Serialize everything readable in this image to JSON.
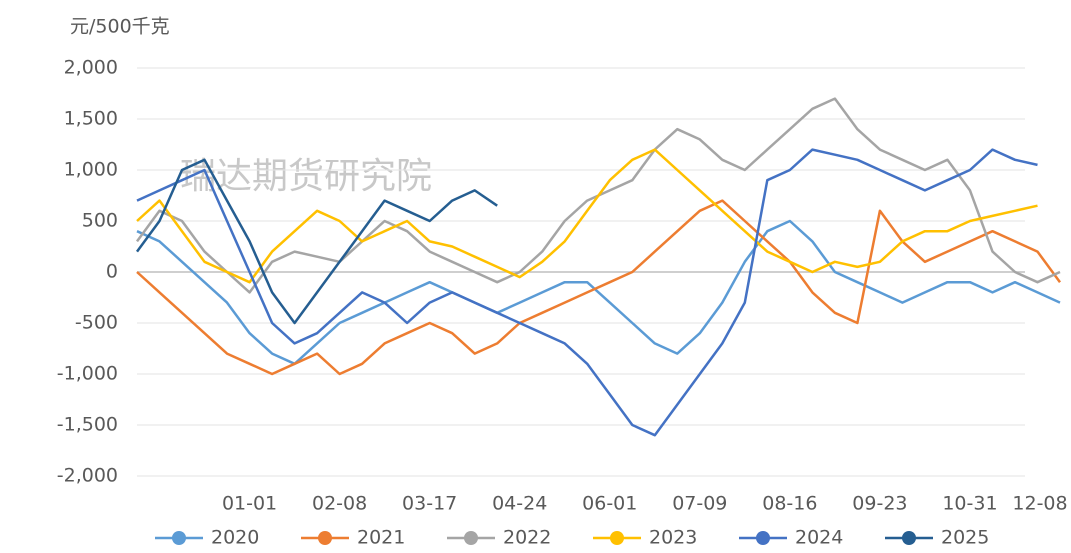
{
  "chart_data": {
    "type": "line",
    "y_axis_label": "元/500千克",
    "watermark": "瑞达期货研究院",
    "categories": [
      null,
      null,
      null,
      null,
      null,
      "01-01",
      null,
      null,
      null,
      "02-08",
      null,
      null,
      null,
      "03-17",
      null,
      null,
      null,
      "04-24",
      null,
      null,
      null,
      "06-01",
      null,
      null,
      null,
      "07-09",
      null,
      null,
      null,
      "08-16",
      null,
      null,
      null,
      "09-23",
      null,
      null,
      null,
      "10-31",
      null,
      null,
      null,
      "12-08"
    ],
    "ylim": [
      -2000,
      2000
    ],
    "yticks": [
      {
        "value": -2000,
        "label": "-2,000"
      },
      {
        "value": -1500,
        "label": "-1,500"
      },
      {
        "value": -1000,
        "label": "-1,000"
      },
      -500,
      0,
      500,
      {
        "value": 1000,
        "label": "1,000"
      },
      {
        "value": 1500,
        "label": "1,500"
      },
      {
        "value": 2000,
        "label": "2,000"
      }
    ],
    "grid": true,
    "legend": "bottom",
    "series": [
      {
        "name": "2020",
        "color": "#5b9bd5",
        "values": [
          400,
          300,
          100,
          -100,
          -300,
          -600,
          -800,
          -900,
          -700,
          -500,
          -400,
          -300,
          -200,
          -100,
          -200,
          -300,
          -400,
          -300,
          -200,
          -100,
          -100,
          -300,
          -500,
          -700,
          -800,
          -600,
          -300,
          100,
          400,
          500,
          300,
          0,
          -100,
          -200,
          -300,
          -200,
          -100,
          -100,
          -200,
          -100,
          -200,
          -300
        ]
      },
      {
        "name": "2021",
        "color": "#ed7d31",
        "values": [
          0,
          -200,
          -400,
          -600,
          -800,
          -900,
          -1000,
          -900,
          -800,
          -1000,
          -900,
          -700,
          -600,
          -500,
          -600,
          -800,
          -700,
          -500,
          -400,
          -300,
          -200,
          -100,
          0,
          200,
          400,
          600,
          700,
          500,
          300,
          100,
          -200,
          -400,
          -500,
          600,
          300,
          100,
          200,
          300,
          400,
          300,
          200,
          -100
        ]
      },
      {
        "name": "2022",
        "color": "#a5a5a5",
        "values": [
          300,
          600,
          500,
          200,
          0,
          -200,
          100,
          200,
          150,
          100,
          300,
          500,
          400,
          200,
          100,
          0,
          -100,
          0,
          200,
          500,
          700,
          800,
          900,
          1200,
          1400,
          1300,
          1100,
          1000,
          1200,
          1400,
          1600,
          1700,
          1400,
          1200,
          1100,
          1000,
          1100,
          800,
          200,
          0,
          -100,
          0
        ]
      },
      {
        "name": "2023",
        "color": "#ffc000",
        "values": [
          500,
          700,
          400,
          100,
          0,
          -100,
          200,
          400,
          600,
          500,
          300,
          400,
          500,
          300,
          250,
          150,
          50,
          -50,
          100,
          300,
          600,
          900,
          1100,
          1200,
          1000,
          800,
          600,
          400,
          200,
          100,
          0,
          100,
          50,
          100,
          300,
          400,
          400,
          500,
          550,
          600,
          650,
          null
        ]
      },
      {
        "name": "2024",
        "color": "#4472c4",
        "values": [
          700,
          800,
          900,
          1000,
          500,
          0,
          -500,
          -700,
          -600,
          -400,
          -200,
          -300,
          -500,
          -300,
          -200,
          -300,
          -400,
          -500,
          -600,
          -700,
          -900,
          -1200,
          -1500,
          -1600,
          -1300,
          -1000,
          -700,
          -300,
          900,
          1000,
          1200,
          1150,
          1100,
          1000,
          900,
          800,
          900,
          1000,
          1200,
          1100,
          1050,
          null
        ]
      },
      {
        "name": "2025",
        "color": "#255e91",
        "values": [
          200,
          500,
          1000,
          1100,
          700,
          300,
          -200,
          -500,
          -200,
          100,
          400,
          700,
          600,
          500,
          700,
          800,
          650,
          null,
          null,
          null,
          null,
          null,
          null,
          null,
          null,
          null,
          null,
          null,
          null,
          null,
          null,
          null,
          null,
          null,
          null,
          null,
          null,
          null,
          null,
          null,
          null,
          null
        ]
      }
    ]
  }
}
